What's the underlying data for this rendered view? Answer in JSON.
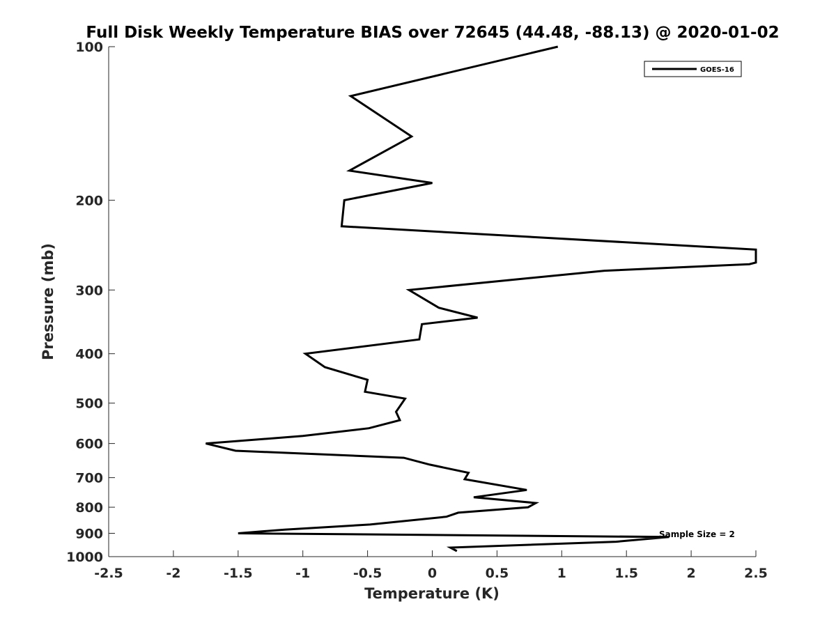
{
  "chart_data": {
    "type": "line",
    "title": "Full Disk Weekly Temperature BIAS over 72645 (44.48, -88.13) @ 2020-01-02",
    "xlabel": "Temperature (K)",
    "ylabel": "Pressure (mb)",
    "xlim": [
      -2.5,
      2.5
    ],
    "ylim": [
      100,
      1000
    ],
    "yscale": "log",
    "yreversed": true,
    "grid": false,
    "xticks": [
      -2.5,
      -2,
      -1.5,
      -1,
      -0.5,
      0,
      0.5,
      1,
      1.5,
      2,
      2.5
    ],
    "xtick_labels": [
      "-2.5",
      "-2",
      "-1.5",
      "-1",
      "-0.5",
      "0",
      "0.5",
      "1",
      "1.5",
      "2",
      "2.5"
    ],
    "yticks": [
      100,
      200,
      300,
      400,
      500,
      600,
      700,
      800,
      900,
      1000
    ],
    "ytick_labels": [
      "100",
      "200",
      "300",
      "400",
      "500",
      "600",
      "700",
      "800",
      "900",
      "1000"
    ],
    "legend": {
      "position": "top-right",
      "entries": [
        "GOES-16"
      ]
    },
    "annotation": "Sample Size = 2",
    "series": [
      {
        "name": "GOES-16",
        "color": "#000000",
        "points": [
          {
            "x": 0.97,
            "p": 100
          },
          {
            "x": -0.63,
            "p": 125
          },
          {
            "x": -0.16,
            "p": 150
          },
          {
            "x": -0.64,
            "p": 175
          },
          {
            "x": 0.0,
            "p": 185
          },
          {
            "x": -0.68,
            "p": 200
          },
          {
            "x": -0.7,
            "p": 225
          },
          {
            "x": 2.5,
            "p": 250
          },
          {
            "x": 2.5,
            "p": 265
          },
          {
            "x": 2.45,
            "p": 267
          },
          {
            "x": 1.33,
            "p": 275
          },
          {
            "x": -0.18,
            "p": 300
          },
          {
            "x": 0.05,
            "p": 325
          },
          {
            "x": 0.35,
            "p": 340
          },
          {
            "x": -0.08,
            "p": 350
          },
          {
            "x": -0.1,
            "p": 375
          },
          {
            "x": -0.98,
            "p": 400
          },
          {
            "x": -0.83,
            "p": 425
          },
          {
            "x": -0.5,
            "p": 450
          },
          {
            "x": -0.52,
            "p": 475
          },
          {
            "x": -0.21,
            "p": 490
          },
          {
            "x": -0.28,
            "p": 520
          },
          {
            "x": -0.25,
            "p": 540
          },
          {
            "x": -0.49,
            "p": 560
          },
          {
            "x": -1.0,
            "p": 580
          },
          {
            "x": -1.75,
            "p": 600
          },
          {
            "x": -1.52,
            "p": 620
          },
          {
            "x": -0.22,
            "p": 640
          },
          {
            "x": -0.02,
            "p": 660
          },
          {
            "x": 0.28,
            "p": 685
          },
          {
            "x": 0.25,
            "p": 705
          },
          {
            "x": 0.73,
            "p": 740
          },
          {
            "x": 0.32,
            "p": 765
          },
          {
            "x": 0.8,
            "p": 785
          },
          {
            "x": 0.74,
            "p": 800
          },
          {
            "x": 0.2,
            "p": 820
          },
          {
            "x": 0.11,
            "p": 835
          },
          {
            "x": -0.48,
            "p": 865
          },
          {
            "x": -1.14,
            "p": 885
          },
          {
            "x": -1.5,
            "p": 900
          },
          {
            "x": 1.83,
            "p": 915
          },
          {
            "x": 1.42,
            "p": 935
          },
          {
            "x": 0.14,
            "p": 960
          },
          {
            "x": 0.19,
            "p": 975
          }
        ]
      }
    ]
  }
}
